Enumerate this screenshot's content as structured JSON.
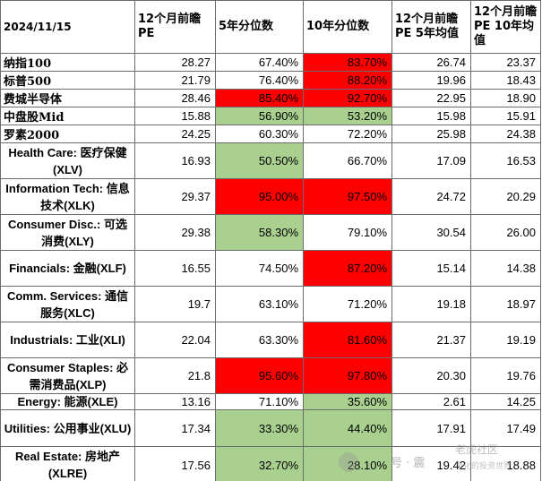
{
  "header": {
    "date": "2024/11/15",
    "col_pe": "12个月前瞻PE",
    "col_5y_pct": "5年分位数",
    "col_10y_pct": "10年分位数",
    "col_5y_avg": "12个月前瞻PE 5年均值",
    "col_10y_avg": "12个月前瞻PE 10年均值"
  },
  "rows": [
    {
      "name": "纳指100",
      "pe": "28.27",
      "p5": "67.40%",
      "p10": "83.70%",
      "a5": "26.74",
      "a10": "23.37",
      "c5": "",
      "c10": "red"
    },
    {
      "name": "标普500",
      "pe": "21.79",
      "p5": "76.40%",
      "p10": "88.20%",
      "a5": "19.96",
      "a10": "18.43",
      "c5": "",
      "c10": "red"
    },
    {
      "name": "费城半导体",
      "pe": "28.46",
      "p5": "85.40%",
      "p10": "92.70%",
      "a5": "22.95",
      "a10": "18.90",
      "c5": "red",
      "c10": "red"
    },
    {
      "name": "中盘股Mid",
      "pe": "15.88",
      "p5": "56.90%",
      "p10": "53.20%",
      "a5": "15.98",
      "a10": "15.91",
      "c5": "grn",
      "c10": "grn"
    },
    {
      "name": "罗素2000",
      "pe": "24.25",
      "p5": "60.30%",
      "p10": "72.20%",
      "a5": "25.98",
      "a10": "24.38",
      "c5": "",
      "c10": ""
    },
    {
      "name": "Health Care: 医疗保健(XLV)",
      "pe": "16.93",
      "p5": "50.50%",
      "p10": "66.70%",
      "a5": "17.09",
      "a10": "16.53",
      "c5": "grn",
      "c10": ""
    },
    {
      "name": "Information Tech: 信息技术(XLK)",
      "pe": "29.37",
      "p5": "95.00%",
      "p10": "97.50%",
      "a5": "24.72",
      "a10": "20.29",
      "c5": "red",
      "c10": "red"
    },
    {
      "name": "Consumer Disc.: 可选消费(XLY)",
      "pe": "29.38",
      "p5": "58.30%",
      "p10": "79.10%",
      "a5": "30.54",
      "a10": "26.00",
      "c5": "grn",
      "c10": ""
    },
    {
      "name": "Financials: 金融(XLF)",
      "pe": "16.55",
      "p5": "74.50%",
      "p10": "87.20%",
      "a5": "15.14",
      "a10": "14.38",
      "c5": "",
      "c10": "red"
    },
    {
      "name": "Comm. Services: 通信服务(XLC)",
      "pe": "19.7",
      "p5": "63.10%",
      "p10": "71.20%",
      "a5": "19.18",
      "a10": "18.97",
      "c5": "",
      "c10": ""
    },
    {
      "name": "Industrials: 工业(XLI)",
      "pe": "22.04",
      "p5": "63.30%",
      "p10": "81.60%",
      "a5": "21.37",
      "a10": "19.19",
      "c5": "",
      "c10": "red"
    },
    {
      "name": "Consumer Staples: 必需消费品(XLP)",
      "pe": "21.8",
      "p5": "95.60%",
      "p10": "97.80%",
      "a5": "20.30",
      "a10": "19.76",
      "c5": "red",
      "c10": "red"
    },
    {
      "name": "Energy: 能源(XLE)",
      "pe": "13.16",
      "p5": "71.10%",
      "p10": "35.60%",
      "a5": "2.61",
      "a10": "14.25",
      "c5": "",
      "c10": "grn"
    },
    {
      "name": "Utilities: 公用事业(XLU)",
      "pe": "17.34",
      "p5": "33.30%",
      "p10": "44.40%",
      "a5": "17.91",
      "a10": "17.49",
      "c5": "grn",
      "c10": "grn"
    },
    {
      "name": "Real Estate: 房地产(XLRE)",
      "pe": "17.56",
      "p5": "32.70%",
      "p10": "28.10%",
      "a5": "19.42",
      "a10": "18.88",
      "c5": "grn",
      "c10": "grn"
    }
  ],
  "watermark": {
    "text": "号 · 震",
    "logo": "老虎社区",
    "sub": "量化的投资世界"
  }
}
